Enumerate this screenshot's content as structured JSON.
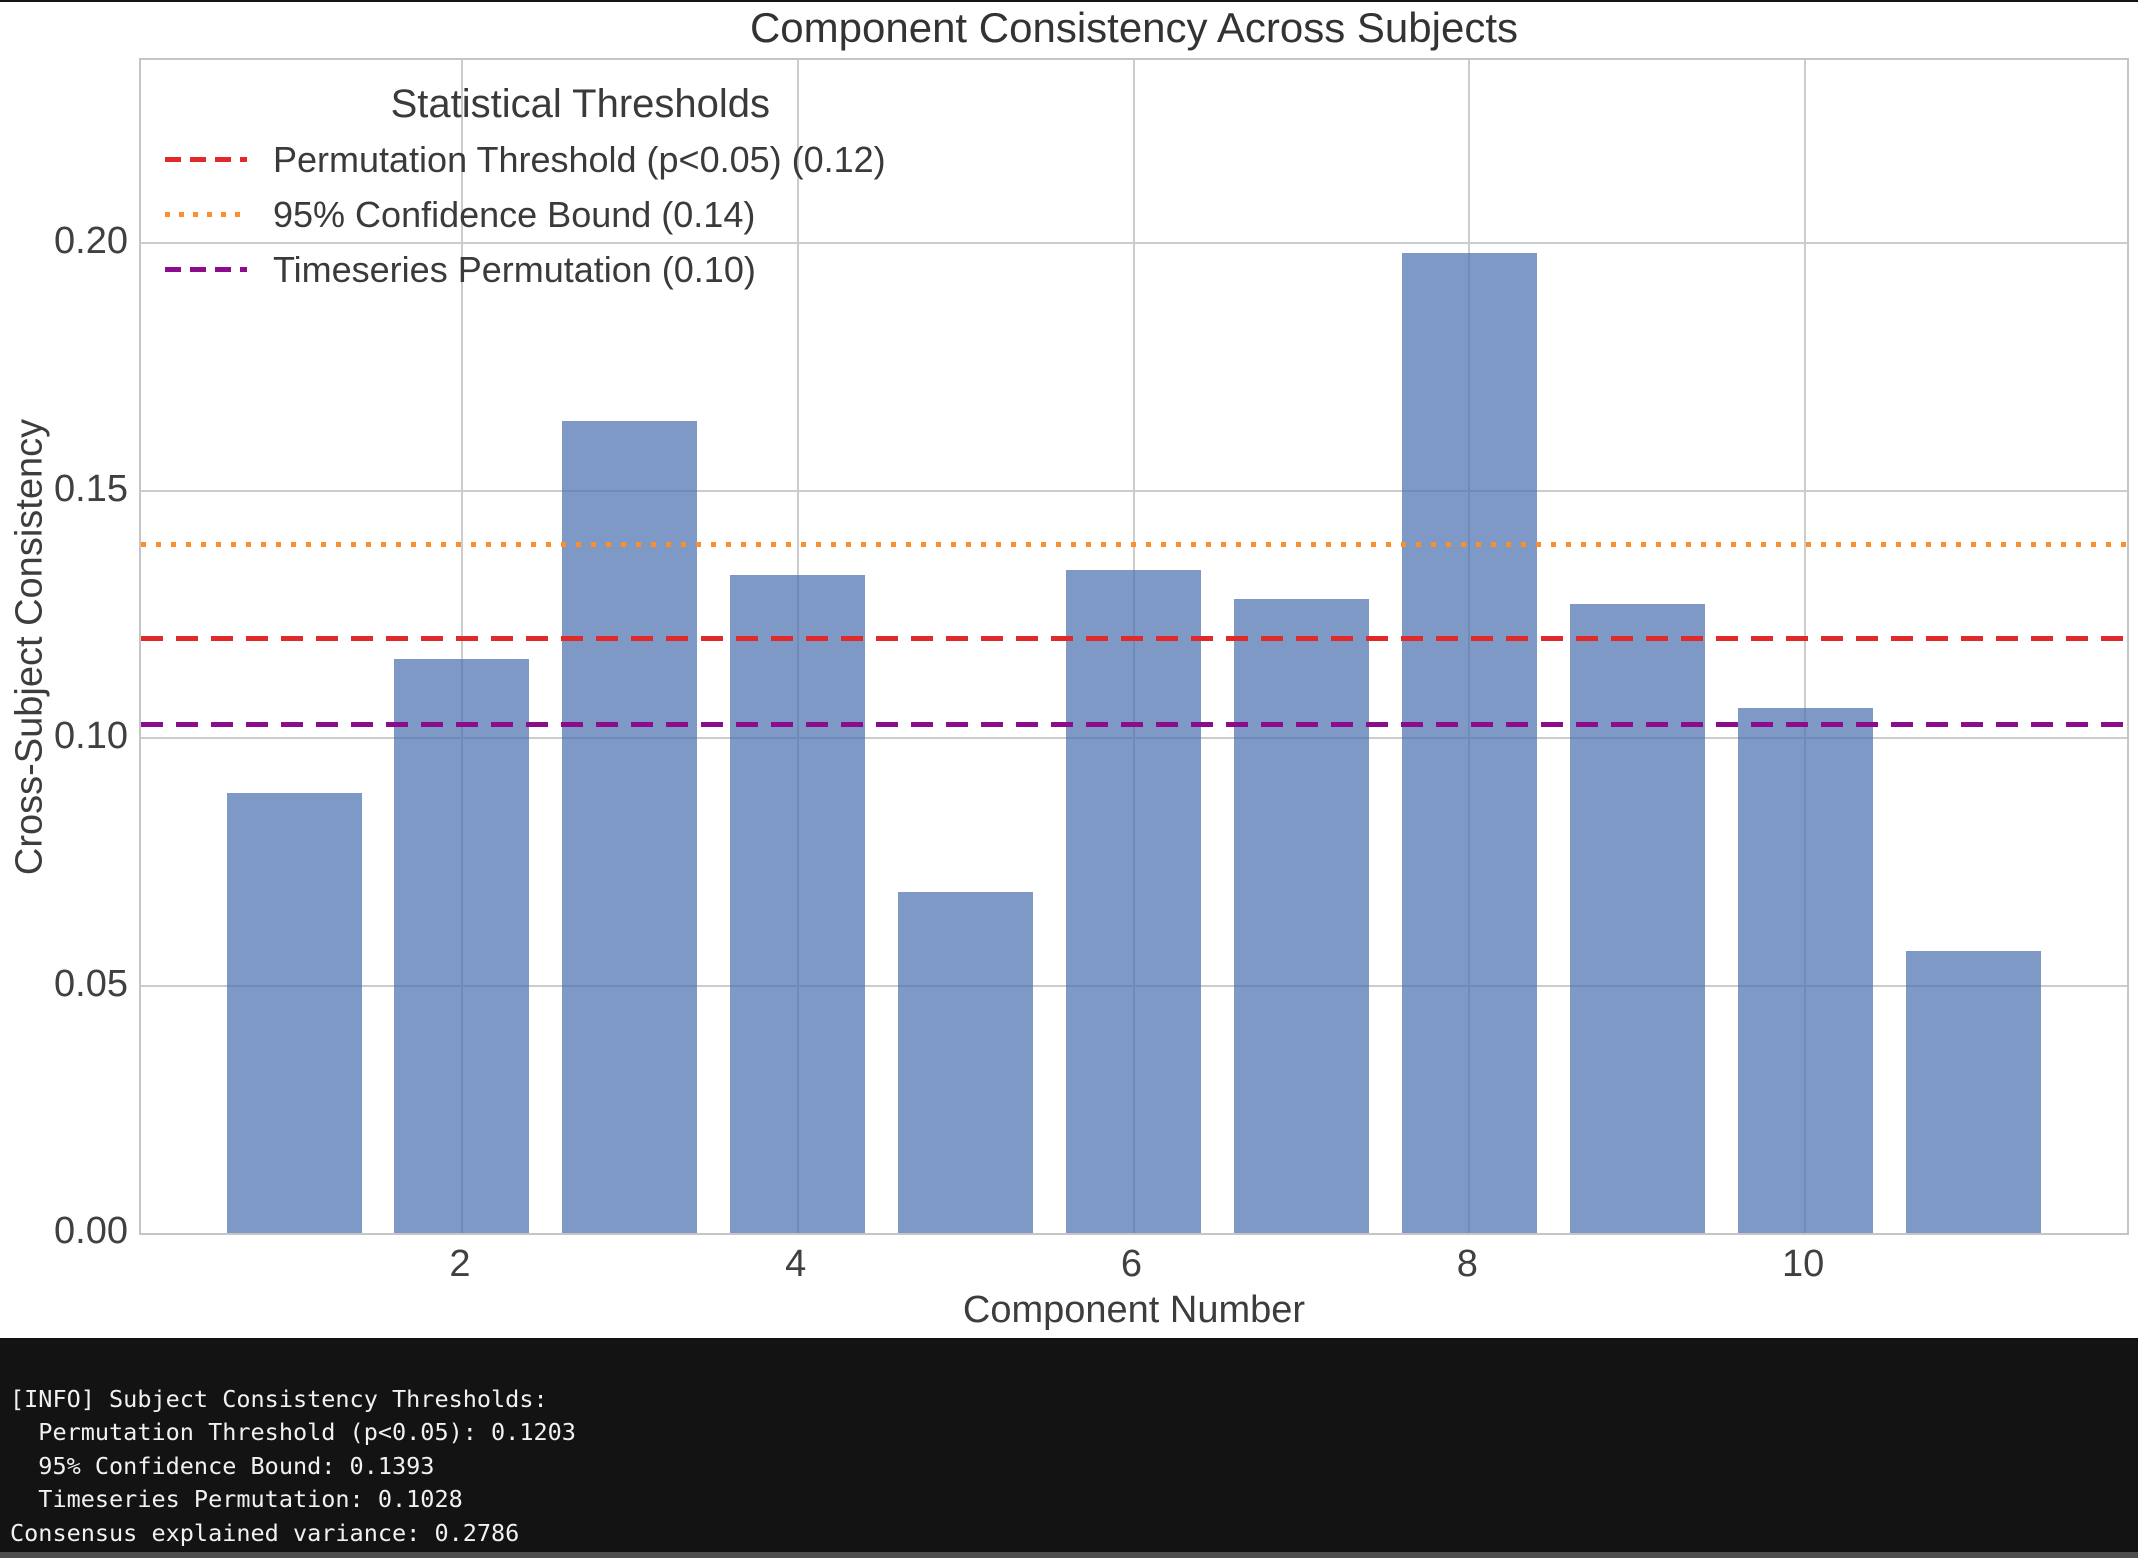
{
  "chart_data": {
    "type": "bar",
    "title": "Component Consistency Across Subjects",
    "xlabel": "Component Number",
    "ylabel": "Cross-Subject Consistency",
    "categories": [
      1,
      2,
      3,
      4,
      5,
      6,
      7,
      8,
      9,
      10,
      11
    ],
    "values": [
      0.089,
      0.116,
      0.164,
      0.133,
      0.069,
      0.134,
      0.128,
      0.198,
      0.127,
      0.106,
      0.057
    ],
    "bar_color": "#4C72B0",
    "bar_alpha": 0.72,
    "xticks": [
      2,
      4,
      6,
      8,
      10
    ],
    "yticks": [
      {
        "value": 0.0,
        "label": "0.00"
      },
      {
        "value": 0.05,
        "label": "0.05"
      },
      {
        "value": 0.1,
        "label": "0.10"
      },
      {
        "value": 0.15,
        "label": "0.15"
      },
      {
        "value": 0.2,
        "label": "0.20"
      }
    ],
    "ylim": [
      0,
      0.237
    ],
    "grid": true,
    "legend": {
      "title": "Statistical Thresholds",
      "position": "upper left",
      "items": [
        {
          "label": "Permutation Threshold (p<0.05) (0.12)",
          "color": "#e02a2a",
          "style": "dashed",
          "value": 0.1203
        },
        {
          "label": "95% Confidence Bound (0.14)",
          "color": "#fb8f2e",
          "style": "dotted",
          "value": 0.1393
        },
        {
          "label": "Timeseries Permutation (0.10)",
          "color": "#8b0d8b",
          "style": "dashed",
          "value": 0.1028
        }
      ]
    }
  },
  "terminal": {
    "lines": [
      "[INFO] Subject Consistency Thresholds:",
      "  Permutation Threshold (p<0.05): 0.1203",
      "  95% Confidence Bound: 0.1393",
      "  Timeseries Permutation: 0.1028",
      "Consensus explained variance: 0.2786"
    ]
  }
}
